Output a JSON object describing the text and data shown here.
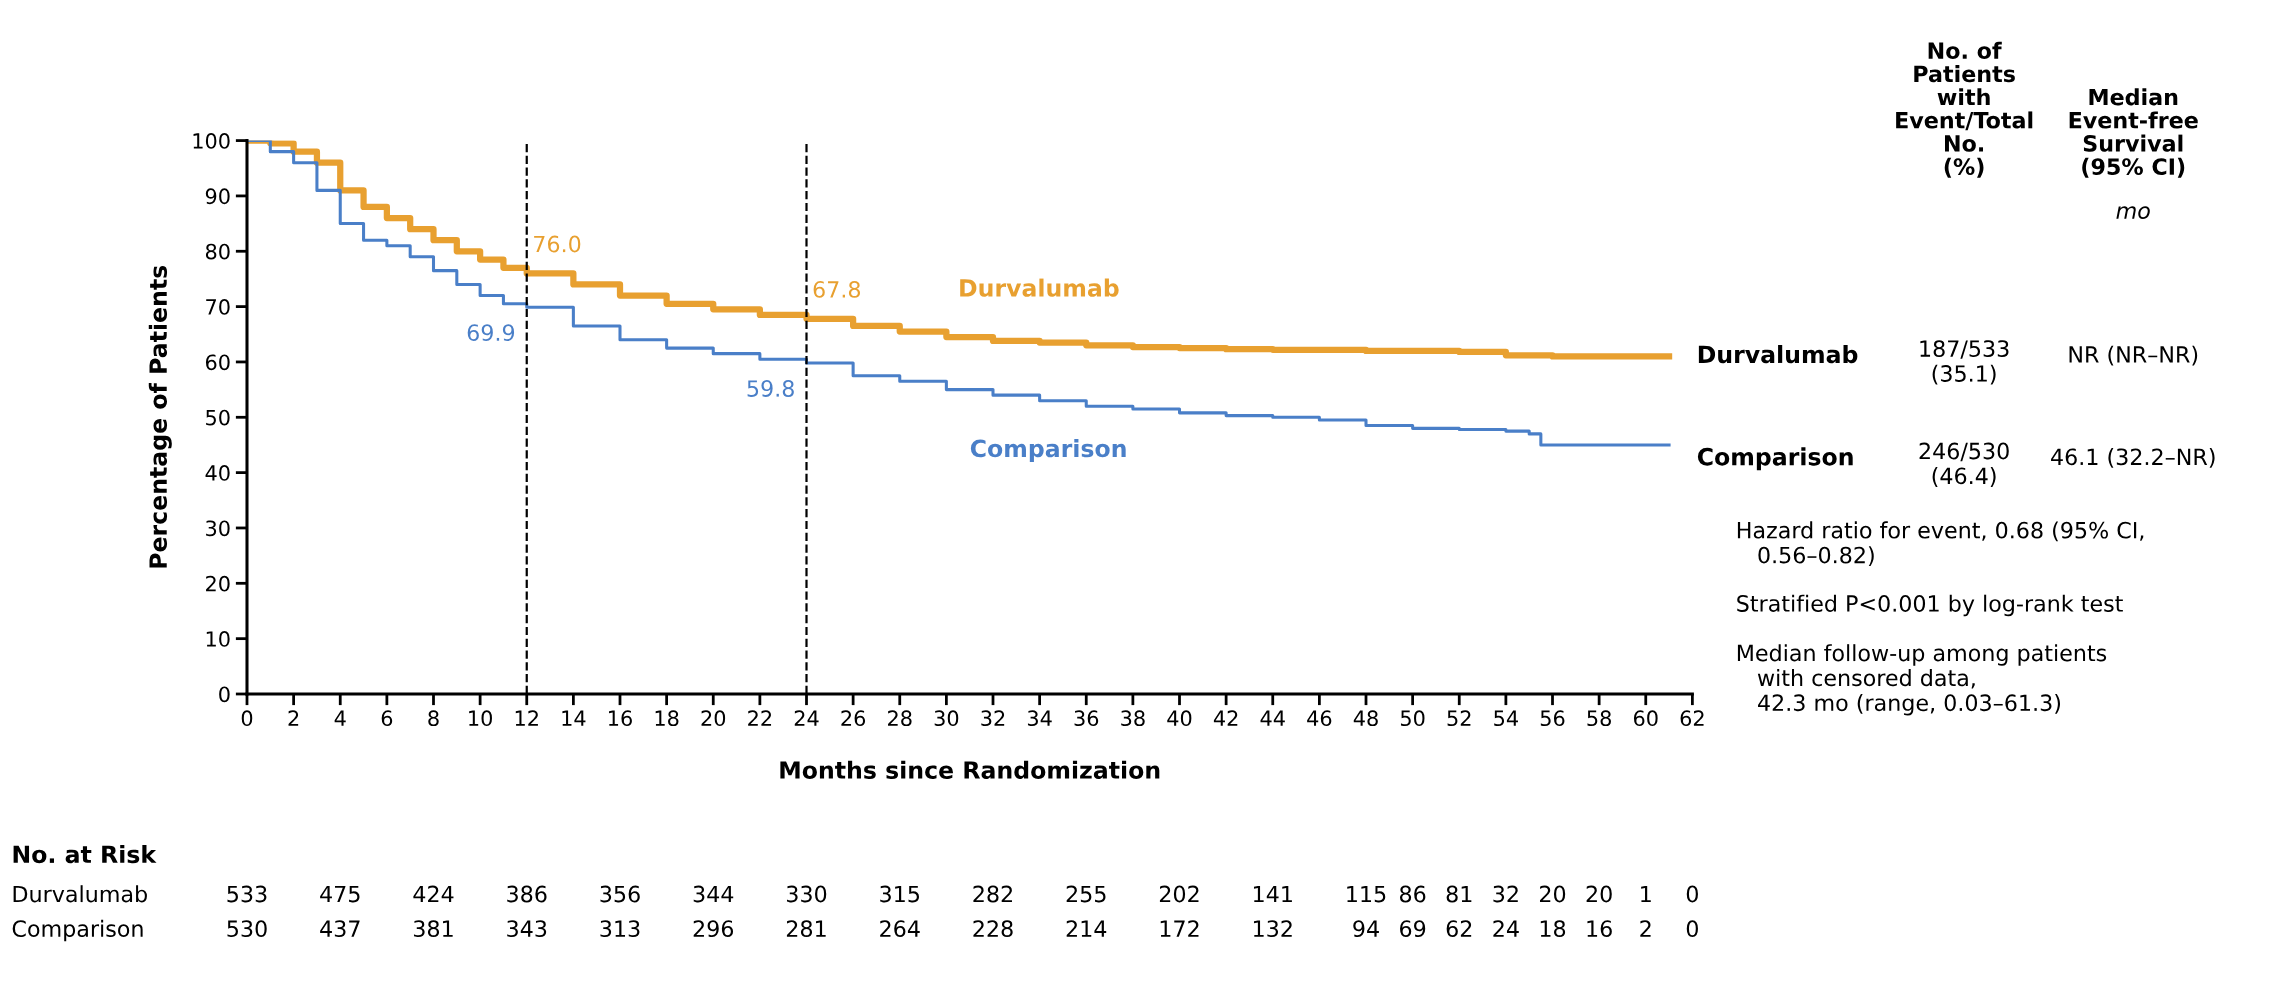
{
  "chart_data": {
    "type": "step",
    "xlabel": "Months since Randomization",
    "ylabel": "Percentage of Patients",
    "xlim": [
      0,
      62
    ],
    "ylim": [
      0,
      100
    ],
    "xticks": [
      0,
      2,
      4,
      6,
      8,
      10,
      12,
      14,
      16,
      18,
      20,
      22,
      24,
      26,
      28,
      30,
      32,
      34,
      36,
      38,
      40,
      42,
      44,
      46,
      48,
      50,
      52,
      54,
      56,
      58,
      60,
      62
    ],
    "yticks": [
      0,
      10,
      20,
      30,
      40,
      50,
      60,
      70,
      80,
      90,
      100
    ],
    "grid": false,
    "legend": false,
    "line_style": "solid",
    "ref_lines": [
      {
        "axis": "x",
        "value": 12,
        "line_style": "dashed",
        "color": "#000000"
      },
      {
        "axis": "x",
        "value": 24,
        "line_style": "dashed",
        "color": "#000000"
      }
    ],
    "series": [
      {
        "name": "Durvalumab",
        "color": "#e8a030",
        "x": [
          0,
          1,
          2,
          3,
          4,
          5,
          6,
          7,
          8,
          9,
          10,
          11,
          12,
          14,
          16,
          18,
          20,
          22,
          24,
          26,
          28,
          30,
          32,
          34,
          36,
          38,
          40,
          42,
          44,
          48,
          52,
          54,
          56,
          61
        ],
        "values": [
          100,
          99.5,
          98,
          96,
          91,
          88,
          86,
          84,
          82,
          80,
          78.5,
          77,
          76,
          74,
          72,
          70.5,
          69.5,
          68.5,
          67.8,
          66.5,
          65.5,
          64.5,
          63.8,
          63.5,
          63,
          62.7,
          62.5,
          62.3,
          62.2,
          62,
          61.8,
          61.2,
          61,
          61
        ],
        "value_labels": [
          null,
          null,
          null,
          null,
          null,
          null,
          null,
          null,
          null,
          null,
          null,
          null,
          "76.0",
          null,
          null,
          null,
          null,
          null,
          "67.8",
          null,
          null,
          null,
          null,
          null,
          null,
          null,
          null,
          null,
          null,
          null,
          null,
          null,
          null,
          null
        ]
      },
      {
        "name": "Comparison",
        "color": "#4a7fc8",
        "x": [
          0,
          1,
          2,
          3,
          4,
          5,
          6,
          7,
          8,
          9,
          10,
          11,
          12,
          14,
          16,
          18,
          20,
          22,
          24,
          26,
          28,
          30,
          32,
          34,
          36,
          38,
          40,
          42,
          44,
          46,
          48,
          50,
          52,
          54,
          55,
          55.5,
          58,
          61
        ],
        "values": [
          100,
          98,
          96,
          91,
          85,
          82,
          81,
          79,
          76.5,
          74,
          72,
          70.5,
          69.9,
          66.5,
          64,
          62.5,
          61.5,
          60.5,
          59.8,
          57.5,
          56.5,
          55,
          54,
          53,
          52,
          51.5,
          50.8,
          50.3,
          50,
          49.5,
          48.5,
          48,
          47.8,
          47.5,
          47,
          45,
          45,
          45
        ],
        "value_labels": [
          null,
          null,
          null,
          null,
          null,
          null,
          null,
          null,
          null,
          null,
          null,
          null,
          "69.9",
          null,
          null,
          null,
          null,
          null,
          "59.8",
          null,
          null,
          null,
          null,
          null,
          null,
          null,
          null,
          null,
          null,
          null,
          null,
          null,
          null,
          null,
          null,
          null,
          null,
          null
        ]
      }
    ],
    "annotations": [
      "No. of\nPatients\nwith\nEvent/Total\nNo.\n(%)",
      "Median\nEvent-free\nSurvival\n(95% CI)",
      "mo",
      "Durvalumab",
      "187/533\n(35.1)",
      "NR (NR–NR)",
      "Comparison",
      "246/530\n(46.4)",
      "46.1 (32.2–NR)",
      "Hazard ratio for event, 0.68 (95% CI,\n   0.56–0.82)",
      "Stratified P<0.001 by log-rank test",
      "Median follow-up among patients\n   with censored data,\n   42.3 mo (range, 0.03–61.3)",
      "No. at Risk",
      "Durvalumab",
      "533",
      "475",
      "424",
      "386",
      "356",
      "344",
      "330",
      "315",
      "282",
      "255",
      "202",
      "141",
      "115",
      "86",
      "81",
      "32",
      "20",
      "20",
      "1",
      "0",
      "Comparison",
      "530",
      "437",
      "381",
      "343",
      "313",
      "296",
      "281",
      "264",
      "228",
      "214",
      "172",
      "132",
      "94",
      "69",
      "62",
      "24",
      "18",
      "16",
      "2",
      "0"
    ]
  }
}
